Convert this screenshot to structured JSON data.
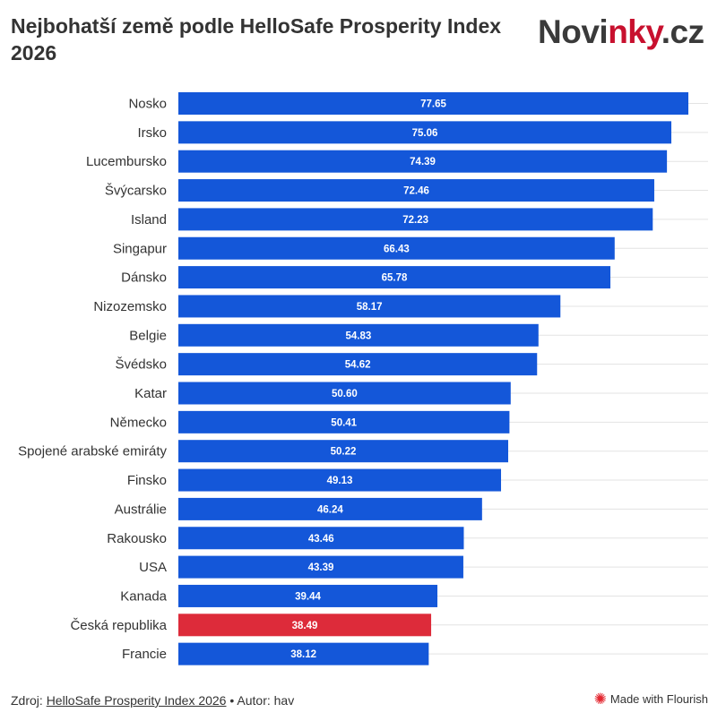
{
  "header": {
    "title": "Nejbohatší země podle HelloSafe Prosperity Index 2026",
    "logo_main": "Novi",
    "logo_accent": "nky",
    "logo_tail": ".cz"
  },
  "footer": {
    "source_label": "Zdroj: ",
    "source_link": "HelloSafe Prosperity Index 2026",
    "separator": " • ",
    "author": "Autor: hav",
    "flourish_icon": "flourish-star-icon",
    "flourish_label": "Made with Flourish"
  },
  "colors": {
    "bar": "#1457d9",
    "highlight": "#dd2b3a",
    "grid": "#e3e3e3",
    "label_text": "#333333",
    "value_text": "#ffffff"
  },
  "chart_data": {
    "type": "bar",
    "orientation": "horizontal",
    "title": "Nejbohatší země podle HelloSafe Prosperity Index 2026",
    "categories": [
      "Nosko",
      "Irsko",
      "Lucembursko",
      "Švýcarsko",
      "Island",
      "Singapur",
      "Dánsko",
      "Nizozemsko",
      "Belgie",
      "Švédsko",
      "Katar",
      "Německo",
      "Spojené arabské emiráty",
      "Finsko",
      "Austrálie",
      "Rakousko",
      "USA",
      "Kanada",
      "Česká republika",
      "Francie"
    ],
    "values": [
      77.65,
      75.06,
      74.39,
      72.46,
      72.23,
      66.43,
      65.78,
      58.17,
      54.83,
      54.62,
      50.6,
      50.41,
      50.22,
      49.13,
      46.24,
      43.46,
      43.39,
      39.44,
      38.49,
      38.12
    ],
    "value_labels": [
      "77.65",
      "75.06",
      "74.39",
      "72.46",
      "72.23",
      "66.43",
      "65.78",
      "58.17",
      "54.83",
      "54.62",
      "50.60",
      "50.41",
      "50.22",
      "49.13",
      "46.24",
      "43.46",
      "43.39",
      "39.44",
      "38.49",
      "38.12"
    ],
    "highlight": "Česká republika",
    "xlim": [
      0,
      77.65
    ],
    "xlabel": "",
    "ylabel": "",
    "grid": true
  }
}
